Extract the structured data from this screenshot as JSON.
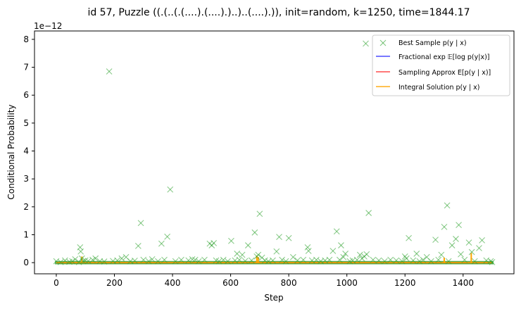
{
  "chart_data": {
    "type": "scatter",
    "title": "id 57, Puzzle ((.(..(.(....).(....).)..)..(....).)), init=random, k=1250, time=1844.17",
    "xlabel": "Step",
    "ylabel": "Conditional Probability",
    "y_scale_label": "1e−12",
    "xlim": [
      -75,
      1575
    ],
    "ylim": [
      -0.4,
      8.3
    ],
    "x_ticks": [
      0,
      200,
      400,
      600,
      800,
      1000,
      1200,
      1400
    ],
    "x_tick_labels": [
      "0",
      "200",
      "400",
      "600",
      "800",
      "1000",
      "1200",
      "1400"
    ],
    "y_ticks": [
      0,
      1,
      2,
      3,
      4,
      5,
      6,
      7,
      8
    ],
    "y_tick_labels": [
      "0",
      "1",
      "2",
      "3",
      "4",
      "5",
      "6",
      "7",
      "8"
    ],
    "grid": false,
    "legend_position": "top-right",
    "legend": [
      {
        "label": "Best Sample p(y | x)",
        "marker": "x",
        "color": "#2ca02c"
      },
      {
        "label": "Fractional exp 𝔼[log p(y|x)]",
        "color": "#0000ff"
      },
      {
        "label": "Sampling Approx E[p(y | x)]",
        "color": "#ff0000"
      },
      {
        "label": "Integral Solution p(y | x)",
        "color": "#ffa500"
      }
    ],
    "series": [
      {
        "name": "Best Sample p(y | x)",
        "style": "x-marker",
        "color": "#2ca02c",
        "x": [
          0,
          15,
          30,
          45,
          55,
          65,
          78,
          82,
          84,
          88,
          92,
          100,
          110,
          125,
          135,
          150,
          165,
          182,
          195,
          210,
          225,
          240,
          255,
          270,
          282,
          291,
          300,
          318,
          330,
          350,
          362,
          372,
          382,
          392,
          410,
          430,
          455,
          468,
          478,
          490,
          510,
          528,
          535,
          542,
          550,
          560,
          575,
          590,
          602,
          615,
          622,
          630,
          640,
          650,
          660,
          672,
          683,
          690,
          695,
          700,
          708,
          718,
          730,
          745,
          758,
          767,
          777,
          790,
          800,
          815,
          830,
          850,
          865,
          868,
          880,
          895,
          910,
          925,
          940,
          952,
          965,
          975,
          980,
          988,
          995,
          1010,
          1020,
          1035,
          1045,
          1052,
          1060,
          1065,
          1068,
          1075,
          1090,
          1110,
          1130,
          1150,
          1170,
          1190,
          1200,
          1205,
          1213,
          1228,
          1240,
          1250,
          1262,
          1275,
          1290,
          1305,
          1315,
          1325,
          1335,
          1345,
          1350,
          1362,
          1375,
          1385,
          1392,
          1405,
          1420,
          1430,
          1440,
          1455,
          1465,
          1480,
          1495,
          1500
        ],
        "y": [
          0.05,
          0.02,
          0.08,
          0.03,
          0.05,
          0.12,
          0.02,
          0.55,
          0.4,
          0.15,
          0.05,
          0.08,
          0.06,
          0.1,
          0.15,
          0.05,
          0.04,
          6.85,
          0.06,
          0.08,
          0.15,
          0.2,
          0.05,
          0.07,
          0.6,
          1.42,
          0.1,
          0.05,
          0.12,
          0.05,
          0.68,
          0.1,
          0.93,
          2.62,
          0.05,
          0.1,
          0.08,
          0.12,
          0.1,
          0.05,
          0.1,
          0.68,
          0.62,
          0.7,
          0.08,
          0.05,
          0.1,
          0.05,
          0.78,
          0.08,
          0.32,
          0.1,
          0.28,
          0.06,
          0.62,
          0.08,
          1.08,
          0.22,
          0.28,
          1.75,
          0.18,
          0.08,
          0.05,
          0.08,
          0.4,
          0.92,
          0.1,
          0.05,
          0.88,
          0.2,
          0.08,
          0.1,
          0.55,
          0.42,
          0.08,
          0.1,
          0.05,
          0.08,
          0.1,
          0.42,
          1.12,
          0.1,
          0.62,
          0.2,
          0.32,
          0.05,
          0.08,
          0.1,
          0.28,
          0.15,
          0.22,
          7.85,
          0.3,
          1.78,
          0.1,
          0.08,
          0.05,
          0.1,
          0.08,
          0.05,
          0.22,
          0.15,
          0.88,
          0.08,
          0.32,
          0.05,
          0.1,
          0.2,
          0.05,
          0.82,
          0.1,
          0.28,
          1.28,
          2.05,
          0.05,
          0.62,
          0.85,
          1.35,
          0.3,
          0.1,
          0.72,
          0.38,
          0.05,
          0.52,
          0.8,
          0.08,
          0.05,
          0.02
        ]
      },
      {
        "name": "Integral Solution p(y | x)",
        "style": "line",
        "color": "#ffa500",
        "spikes": [
          {
            "x": 88,
            "y": 0.22
          },
          {
            "x": 690,
            "y": 0.25
          },
          {
            "x": 695,
            "y": 0.2
          },
          {
            "x": 1335,
            "y": 0.18
          },
          {
            "x": 1428,
            "y": 0.35
          }
        ]
      }
    ]
  }
}
